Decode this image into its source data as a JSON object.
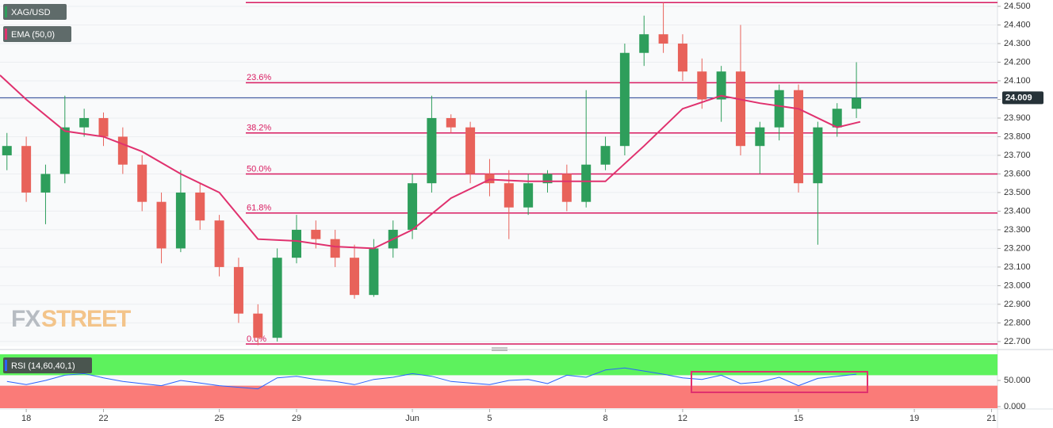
{
  "chart_data": [
    {
      "type": "candlestick",
      "series": [
        {
          "name": "XAG/USD",
          "up_color": "#2e9e5b",
          "down_color": "#e8625a",
          "x": [
            -0.5,
            0,
            0.5,
            1,
            1.5,
            2,
            2.5,
            3,
            3.5,
            4,
            4.5,
            5,
            5.5,
            6,
            6.5,
            7,
            7.5,
            8,
            8.5,
            9,
            9.5,
            10,
            10.5,
            11,
            11.5,
            12,
            12.5,
            13,
            13.5,
            14,
            14.5,
            15,
            15.5,
            16,
            16.5,
            17,
            17.5,
            18,
            18.5,
            19,
            19.5,
            20,
            20.5,
            21,
            21.5
          ],
          "open": [
            23.7,
            23.75,
            23.5,
            23.6,
            23.85,
            23.9,
            23.8,
            23.65,
            23.45,
            23.2,
            23.5,
            23.35,
            23.1,
            22.85,
            22.72,
            23.15,
            23.3,
            23.25,
            23.15,
            22.95,
            23.2,
            23.3,
            23.55,
            23.9,
            23.85,
            23.6,
            23.55,
            23.42,
            23.55,
            23.6,
            23.45,
            23.65,
            23.75,
            24.25,
            24.35,
            24.3,
            24.15,
            24.0,
            24.15,
            23.75,
            23.85,
            24.05,
            23.55,
            23.85,
            23.95
          ],
          "high": [
            23.82,
            23.8,
            23.65,
            24.02,
            23.95,
            23.93,
            23.85,
            23.7,
            23.5,
            23.62,
            23.55,
            23.38,
            23.15,
            22.9,
            23.2,
            23.38,
            23.35,
            23.3,
            23.22,
            23.25,
            23.35,
            23.6,
            24.02,
            23.92,
            23.88,
            23.68,
            23.62,
            23.6,
            23.62,
            23.65,
            24.05,
            23.8,
            24.3,
            24.45,
            24.52,
            24.35,
            24.22,
            24.18,
            24.4,
            23.88,
            24.08,
            24.08,
            23.88,
            23.98,
            24.2
          ],
          "low": [
            23.62,
            23.45,
            23.33,
            23.55,
            23.8,
            23.75,
            23.6,
            23.4,
            23.12,
            23.18,
            23.3,
            23.05,
            22.8,
            22.68,
            22.7,
            23.12,
            23.2,
            23.1,
            22.93,
            22.94,
            23.15,
            23.25,
            23.5,
            23.82,
            23.55,
            23.48,
            23.25,
            23.38,
            23.5,
            23.4,
            23.42,
            23.62,
            23.7,
            24.18,
            24.25,
            24.1,
            23.95,
            23.88,
            23.7,
            23.6,
            23.78,
            23.5,
            23.22,
            23.8,
            23.9
          ],
          "close": [
            23.75,
            23.5,
            23.6,
            23.85,
            23.9,
            23.8,
            23.65,
            23.45,
            23.2,
            23.5,
            23.35,
            23.1,
            22.85,
            22.72,
            23.15,
            23.3,
            23.25,
            23.15,
            22.95,
            23.2,
            23.3,
            23.55,
            23.9,
            23.85,
            23.6,
            23.55,
            23.42,
            23.55,
            23.6,
            23.45,
            23.65,
            23.75,
            24.25,
            24.35,
            24.3,
            24.15,
            24.0,
            24.15,
            23.75,
            23.85,
            24.05,
            23.55,
            23.85,
            23.95,
            24.009
          ]
        },
        {
          "name": "EMA (50,0)",
          "type": "line",
          "color": "#e0316e",
          "x": [
            -0.68,
            0,
            1,
            2,
            3,
            4,
            5,
            6,
            7,
            8,
            9,
            10,
            11,
            12,
            13,
            14,
            15,
            16,
            17,
            18,
            19,
            20,
            21,
            21.6
          ],
          "values": [
            24.13,
            24.0,
            23.83,
            23.8,
            23.72,
            23.6,
            23.5,
            23.25,
            23.24,
            23.21,
            23.2,
            23.3,
            23.47,
            23.57,
            23.56,
            23.56,
            23.56,
            23.75,
            23.95,
            24.02,
            23.98,
            23.95,
            23.85,
            23.88
          ]
        }
      ],
      "fib_levels": [
        {
          "value": 24.52
        },
        {
          "value": 24.09,
          "label": "23.6%"
        },
        {
          "value": 23.82,
          "label": "38.2%"
        },
        {
          "value": 23.6,
          "label": "50.0%"
        },
        {
          "value": 23.39,
          "label": "61.8%"
        },
        {
          "value": 22.687,
          "label": "0.0%"
        }
      ],
      "fib_color": "#d81b60",
      "last_price": {
        "value": 24.009,
        "label": "24.009"
      },
      "watermark": [
        "FX",
        "STREET"
      ],
      "xlim": [
        -0.68,
        25.154
      ],
      "ylim": [
        22.674,
        24.534
      ],
      "yticks": [
        {
          "value": 22.7,
          "label": "22.700"
        },
        {
          "value": 22.8,
          "label": "22.800"
        },
        {
          "value": 22.9,
          "label": "22.900"
        },
        {
          "value": 23.0,
          "label": "23.000"
        },
        {
          "value": 23.1,
          "label": "23.100"
        },
        {
          "value": 23.2,
          "label": "23.200"
        },
        {
          "value": 23.3,
          "label": "23.300"
        },
        {
          "value": 23.4,
          "label": "23.400"
        },
        {
          "value": 23.5,
          "label": "23.500"
        },
        {
          "value": 23.6,
          "label": "23.600"
        },
        {
          "value": 23.7,
          "label": "23.700"
        },
        {
          "value": 23.8,
          "label": "23.800"
        },
        {
          "value": 23.9,
          "label": "23.900"
        },
        {
          "value": 24.0,
          "label": "24.000"
        },
        {
          "value": 24.1,
          "label": "24.100"
        },
        {
          "value": 24.2,
          "label": "24.200"
        },
        {
          "value": 24.3,
          "label": "24.300"
        },
        {
          "value": 24.4,
          "label": "24.400"
        },
        {
          "value": 24.5,
          "label": "24.500"
        }
      ],
      "grid": true
    },
    {
      "type": "line",
      "series": [
        {
          "name": "RSI (14,60,40,1)",
          "color": "#2962ff",
          "x": [
            -0.5,
            0,
            0.5,
            1,
            1.5,
            2,
            2.5,
            3,
            3.5,
            4,
            4.5,
            5,
            5.5,
            6,
            6.5,
            7,
            7.5,
            8,
            8.5,
            9,
            9.5,
            10,
            10.5,
            11,
            11.5,
            12,
            12.5,
            13,
            13.5,
            14,
            14.5,
            15,
            15.5,
            16,
            16.5,
            17,
            17.5,
            18,
            18.5,
            19,
            19.5,
            20,
            20.5,
            21,
            21.5
          ],
          "values": [
            48,
            42,
            50,
            60,
            63,
            55,
            48,
            44,
            40,
            50,
            45,
            40,
            37,
            34,
            55,
            58,
            52,
            48,
            42,
            52,
            56,
            63,
            58,
            48,
            45,
            42,
            50,
            52,
            44,
            60,
            56,
            70,
            74,
            68,
            62,
            55,
            52,
            60,
            44,
            47,
            56,
            40,
            54,
            58,
            62
          ]
        }
      ],
      "bands": [
        {
          "from": 60,
          "to": 100,
          "color": "#5df25d"
        },
        {
          "from": -3,
          "to": 40,
          "color": "#fa7b78"
        }
      ],
      "xlim": [
        -0.68,
        25.154
      ],
      "ylim": [
        -3,
        100
      ],
      "yticks": [
        {
          "value": 0,
          "label": "0.000"
        },
        {
          "value": 50,
          "label": "50.000"
        }
      ],
      "xticks": [
        {
          "value": 0,
          "label": "18"
        },
        {
          "value": 2,
          "label": "22"
        },
        {
          "value": 5,
          "label": "25"
        },
        {
          "value": 7,
          "label": "29"
        },
        {
          "value": 10,
          "label": "Jun"
        },
        {
          "value": 12,
          "label": "5"
        },
        {
          "value": 15,
          "label": "8"
        },
        {
          "value": 17,
          "label": "12"
        },
        {
          "value": 20,
          "label": "15"
        },
        {
          "value": 23,
          "label": "19"
        },
        {
          "value": 25,
          "label": "21"
        }
      ]
    }
  ]
}
